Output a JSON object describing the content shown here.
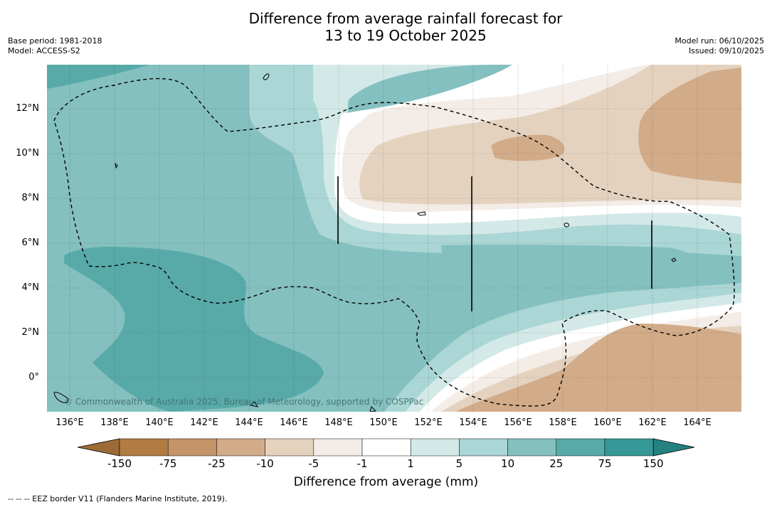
{
  "title_line1": "Difference from average rainfall forecast for",
  "title_line2": "13 to 19 October 2025",
  "base_period": "Base period: 1981-2018",
  "model": "Model: ACCESS-S2",
  "model_run": "Model run: 06/10/2025",
  "issued": "Issued: 09/10/2025",
  "copyright": "© Commonwealth of Australia 2025, Bureau of Meteorology, supported by COSPPac",
  "footer_legend": "--  --  -- EEZ border V11 (Flanders Marine Institute, 2019).",
  "colorbar": {
    "title": "Difference from average (mm)",
    "labels": [
      "-150",
      "-75",
      "-25",
      "-10",
      "-5",
      "-1",
      "1",
      "5",
      "10",
      "25",
      "75",
      "150"
    ],
    "colors": [
      "#9c6b35",
      "#b07c42",
      "#c49368",
      "#d2ab89",
      "#e4d2bf",
      "#f4ece6",
      "#ffffff",
      "#d3e9e8",
      "#aad6d5",
      "#84c0bf",
      "#58aaa9",
      "#359896",
      "#24817f"
    ]
  },
  "axes": {
    "lat_labels": [
      "12°N",
      "10°N",
      "8°N",
      "6°N",
      "4°N",
      "2°N",
      "0°"
    ],
    "lon_labels": [
      "136°E",
      "138°E",
      "140°E",
      "142°E",
      "144°E",
      "146°E",
      "148°E",
      "150°E",
      "152°E",
      "154°E",
      "156°E",
      "158°E",
      "160°E",
      "162°E",
      "164°E"
    ]
  }
}
